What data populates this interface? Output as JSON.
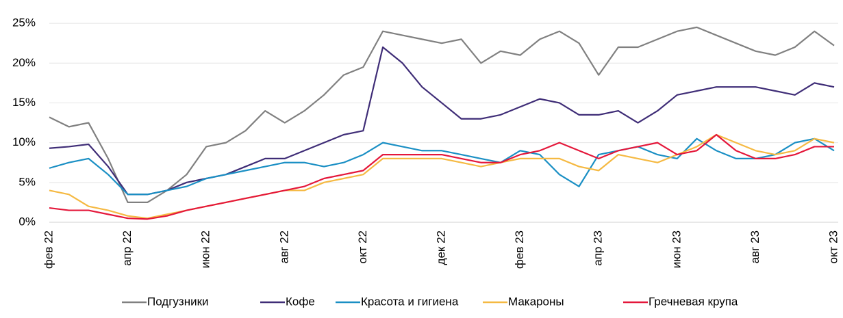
{
  "chart_data": {
    "type": "line",
    "categories": [
      "фев 22",
      null,
      null,
      null,
      "апр 22",
      null,
      null,
      null,
      "июн 22",
      null,
      null,
      null,
      "авг 22",
      null,
      null,
      null,
      "окт 22",
      null,
      null,
      null,
      "дек 22",
      null,
      null,
      null,
      "фев 23",
      null,
      null,
      null,
      "апр 23",
      null,
      null,
      null,
      "июн 23",
      null,
      null,
      null,
      "авг 23",
      null,
      null,
      null,
      "окт 23"
    ],
    "ylim": [
      0,
      27.5
    ],
    "yticks": [
      {
        "value": 0,
        "label": "0%"
      },
      {
        "value": 5,
        "label": "5%"
      },
      {
        "value": 10,
        "label": "10%"
      },
      {
        "value": 15,
        "label": "15%"
      },
      {
        "value": 20,
        "label": "20%"
      },
      {
        "value": 25,
        "label": "25%"
      }
    ],
    "grid": true,
    "legend": "bottom",
    "series": [
      {
        "name": "Подгузники",
        "color": "#808080",
        "values": [
          13.2,
          12,
          12.5,
          8,
          2.5,
          2.5,
          4,
          6,
          9.5,
          10,
          11.5,
          14,
          12.5,
          14,
          16,
          18.5,
          19.5,
          24,
          23.5,
          23,
          22.5,
          23,
          20,
          21.5,
          21,
          23,
          24,
          22.5,
          18.5,
          22,
          22,
          23,
          24,
          24.5,
          23.5,
          22.5,
          21.5,
          21,
          22,
          24,
          22.2
        ]
      },
      {
        "name": "Кофе",
        "color": "#3f2d77",
        "values": [
          9.3,
          9.5,
          9.8,
          7,
          3.5,
          3.5,
          4,
          5,
          5.5,
          6,
          7,
          8,
          8,
          9,
          10,
          11,
          11.5,
          22,
          20,
          17,
          15,
          13,
          13,
          13.5,
          14.5,
          15.5,
          15,
          13.5,
          13.5,
          14,
          12.5,
          14,
          16,
          16.5,
          17,
          17,
          17,
          16.5,
          16,
          17.5,
          17
        ]
      },
      {
        "name": "Красота и гигиена",
        "color": "#1a8fc4",
        "values": [
          6.8,
          7.5,
          8,
          6,
          3.5,
          3.5,
          4,
          4.5,
          5.5,
          6,
          6.5,
          7,
          7.5,
          7.5,
          7,
          7.5,
          8.5,
          10,
          9.5,
          9,
          9,
          8.5,
          8,
          7.5,
          9,
          8.5,
          6,
          4.5,
          8.5,
          9,
          9.5,
          8.5,
          8,
          10.5,
          9,
          8,
          8,
          8.5,
          10,
          10.5,
          9
        ]
      },
      {
        "name": "Макароны",
        "color": "#f5b942",
        "values": [
          4,
          3.5,
          2,
          1.5,
          0.8,
          0.5,
          1,
          1.5,
          2,
          2.5,
          3,
          3.5,
          4,
          4,
          5,
          5.5,
          6,
          8,
          8,
          8,
          8,
          7.5,
          7,
          7.5,
          8,
          8,
          8,
          7,
          6.5,
          8.5,
          8,
          7.5,
          8.5,
          9.5,
          11,
          10,
          9,
          8.5,
          9,
          10.5,
          10
        ]
      },
      {
        "name": "Гречневая крупа",
        "color": "#e4173a",
        "values": [
          1.8,
          1.5,
          1.5,
          1,
          0.5,
          0.4,
          0.8,
          1.5,
          2,
          2.5,
          3,
          3.5,
          4,
          4.5,
          5.5,
          6,
          6.5,
          8.5,
          8.5,
          8.5,
          8.5,
          8,
          7.5,
          7.5,
          8.5,
          9,
          10,
          9,
          8,
          9,
          9.5,
          10,
          8.5,
          9,
          11,
          9,
          8,
          8,
          8.5,
          9.5,
          9.5
        ]
      }
    ]
  }
}
